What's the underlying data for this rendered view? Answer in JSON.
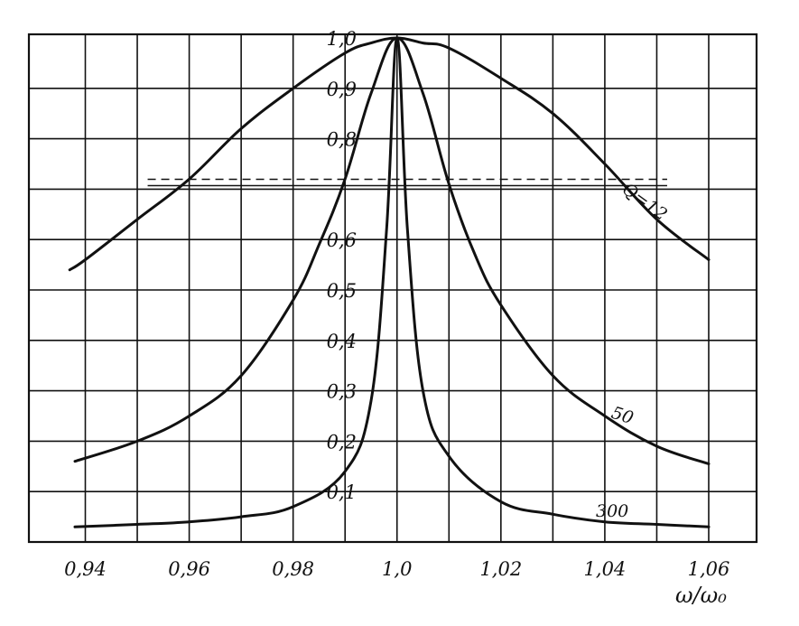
{
  "chart_data": {
    "type": "line",
    "xlabel": "ω/ω₀",
    "ylabel": "",
    "title": "",
    "xlim": [
      0.93,
      1.07
    ],
    "ylim": [
      0,
      1.0
    ],
    "x_ticks": [
      "0,94",
      "0,96",
      "0,98",
      "1,0",
      "1,02",
      "1,04",
      "1,06"
    ],
    "x_tick_values": [
      0.94,
      0.96,
      0.98,
      1.0,
      1.02,
      1.04,
      1.06
    ],
    "y_ticks": [
      "0,1",
      "0,2",
      "0,3",
      "0,4",
      "0,5",
      "0,6",
      "0,8",
      "0,9",
      "1,0"
    ],
    "y_tick_values": [
      0.1,
      0.2,
      0.3,
      0.4,
      0.5,
      0.6,
      0.8,
      0.9,
      1.0
    ],
    "grid": true,
    "reference_lines": [
      {
        "y": 0.707,
        "style": "dashed",
        "x_range": [
          0.952,
          1.052
        ]
      },
      {
        "y": 0.707,
        "style": "solid",
        "x_range": [
          0.952,
          1.052
        ]
      }
    ],
    "series": [
      {
        "name": "Q=12",
        "label_text": "Q=12",
        "x": [
          0.937,
          0.94,
          0.95,
          0.96,
          0.97,
          0.98,
          0.99,
          0.995,
          1.0,
          1.005,
          1.01,
          1.02,
          1.03,
          1.04,
          1.05,
          1.06
        ],
        "values": [
          0.54,
          0.56,
          0.64,
          0.72,
          0.82,
          0.9,
          0.97,
          0.99,
          1.0,
          0.99,
          0.98,
          0.92,
          0.85,
          0.75,
          0.64,
          0.56
        ]
      },
      {
        "name": "50",
        "label_text": "50",
        "x": [
          0.938,
          0.95,
          0.96,
          0.97,
          0.98,
          0.985,
          0.99,
          0.995,
          1.0,
          1.005,
          1.01,
          1.015,
          1.02,
          1.03,
          1.04,
          1.05,
          1.06
        ],
        "values": [
          0.16,
          0.2,
          0.25,
          0.33,
          0.48,
          0.59,
          0.72,
          0.89,
          1.0,
          0.89,
          0.71,
          0.57,
          0.47,
          0.33,
          0.25,
          0.19,
          0.155
        ]
      },
      {
        "name": "300",
        "label_text": "300",
        "x": [
          0.938,
          0.95,
          0.96,
          0.97,
          0.98,
          0.99,
          0.995,
          0.998,
          1.0,
          1.002,
          1.005,
          1.01,
          1.02,
          1.03,
          1.04,
          1.05,
          1.06
        ],
        "values": [
          0.03,
          0.035,
          0.04,
          0.05,
          0.07,
          0.14,
          0.28,
          0.62,
          1.0,
          0.62,
          0.3,
          0.17,
          0.08,
          0.055,
          0.04,
          0.035,
          0.03
        ]
      }
    ]
  }
}
